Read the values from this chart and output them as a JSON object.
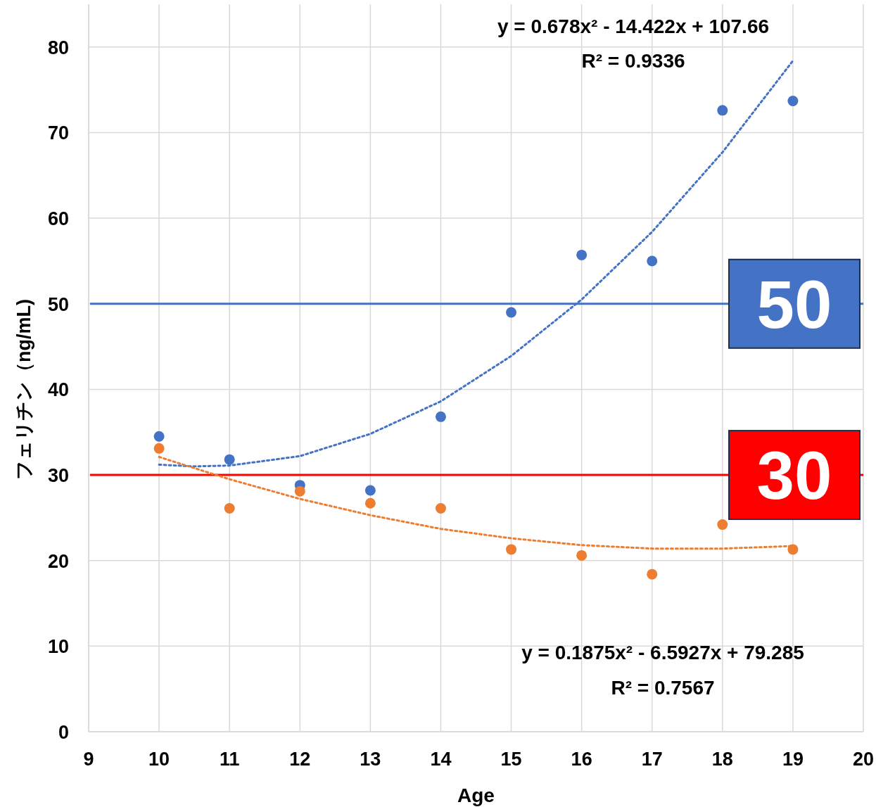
{
  "chart_data": {
    "type": "scatter",
    "xlabel": "Age",
    "ylabel": "フェリチン（ng/mL)",
    "x": [
      10,
      11,
      12,
      13,
      14,
      15,
      16,
      17,
      18,
      19
    ],
    "series": [
      {
        "color": "#4472c4",
        "values": [
          34.5,
          31.8,
          28.8,
          28.2,
          36.8,
          49.0,
          55.7,
          55.0,
          72.6,
          73.7
        ]
      },
      {
        "color": "#ed7d31",
        "values": [
          33.1,
          26.1,
          28.1,
          26.7,
          26.1,
          21.3,
          20.6,
          18.4,
          24.2,
          21.3
        ]
      },
      {
        "type": "line",
        "line_style": "dotted",
        "marker": "none",
        "color": "#4472c4",
        "x": [
          10,
          10.5,
          11,
          12,
          13,
          14,
          15,
          16,
          17,
          18,
          19
        ],
        "values": [
          31.2,
          31.0,
          31.1,
          32.2,
          34.8,
          38.6,
          43.9,
          50.5,
          58.4,
          67.7,
          78.4
        ]
      },
      {
        "type": "line",
        "line_style": "dotted",
        "marker": "none",
        "color": "#ed7d31",
        "x": [
          10,
          11,
          12,
          13,
          14,
          15,
          16,
          17,
          18,
          19
        ],
        "values": [
          32.1,
          29.5,
          27.2,
          25.3,
          23.7,
          22.6,
          21.8,
          21.4,
          21.4,
          21.7
        ]
      }
    ],
    "marker": "circle",
    "xlim": [
      9,
      20
    ],
    "xticks": [
      9,
      10,
      11,
      12,
      13,
      14,
      15,
      16,
      17,
      18,
      19,
      20
    ],
    "ylim": [
      0,
      85
    ],
    "yticks": [
      0,
      10,
      20,
      30,
      40,
      50,
      60,
      70,
      80
    ],
    "grid": true,
    "ref_lines": [
      {
        "axis": "y",
        "value": 50,
        "label": "50",
        "color": "#4472c4"
      },
      {
        "axis": "y",
        "value": 30,
        "label": "30",
        "color": "#ff0000"
      }
    ],
    "annotations": [
      "y = 0.678x² - 14.422x + 107.66",
      "R² = 0.9336",
      "y = 0.1875x² - 6.5927x + 79.285",
      "R² = 0.7567"
    ]
  }
}
